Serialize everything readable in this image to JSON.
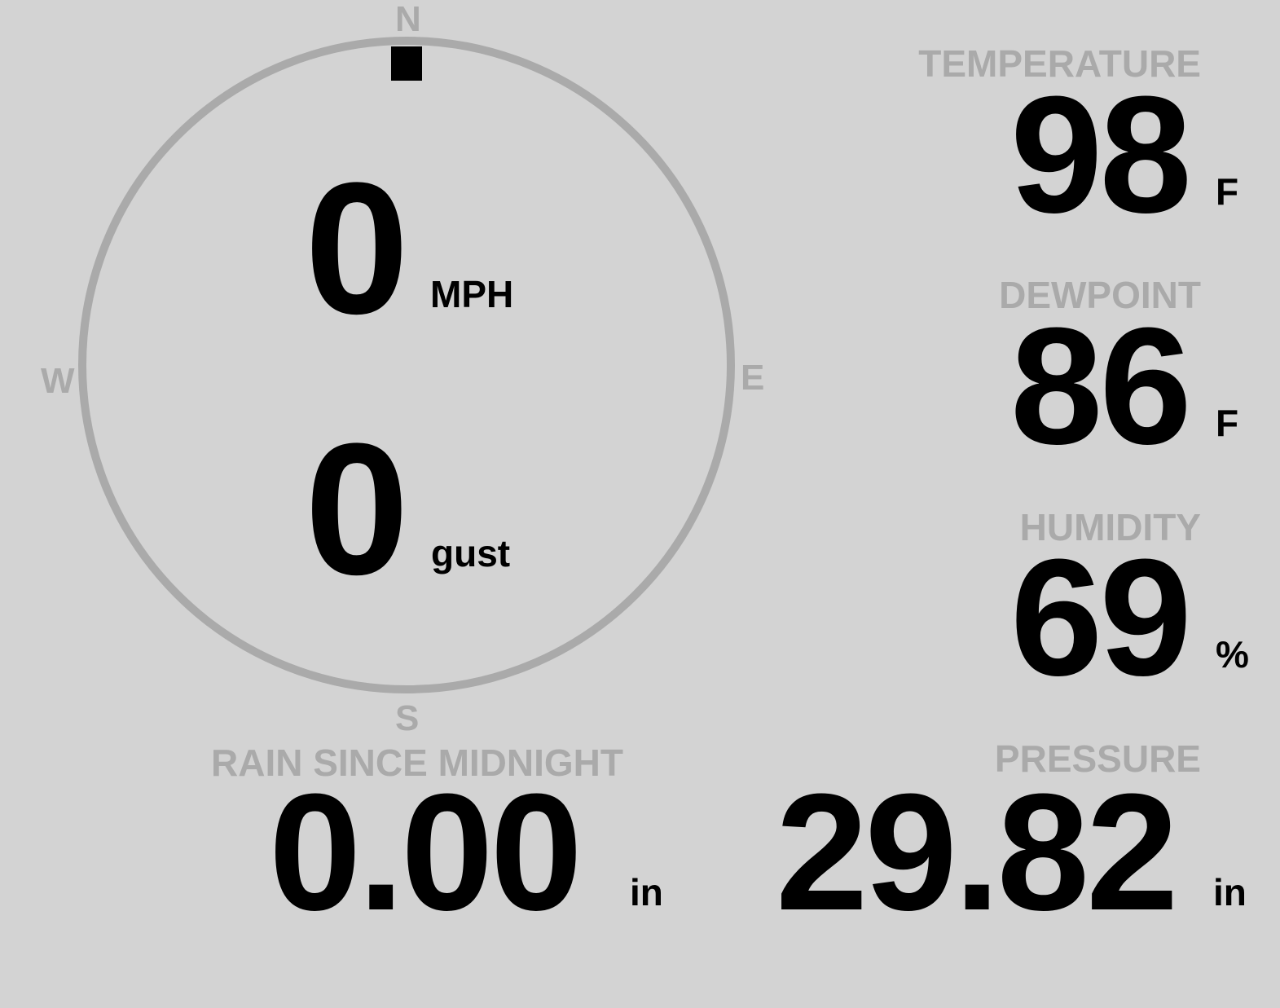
{
  "wind": {
    "speed": "0",
    "speed_unit": "MPH",
    "gust": "0",
    "gust_unit": "gust",
    "direction_deg": 0,
    "compass": {
      "n": "N",
      "e": "E",
      "s": "S",
      "w": "W"
    }
  },
  "temperature": {
    "label": "TEMPERATURE",
    "value": "98",
    "unit": "F"
  },
  "dewpoint": {
    "label": "DEWPOINT",
    "value": "86",
    "unit": "F"
  },
  "humidity": {
    "label": "HUMIDITY",
    "value": "69",
    "unit": "%"
  },
  "rain": {
    "label": "RAIN SINCE MIDNIGHT",
    "value": "0.00",
    "unit": "in"
  },
  "pressure": {
    "label": "PRESSURE",
    "value": "29.82",
    "unit": "in"
  },
  "colors": {
    "background": "#d3d3d3",
    "muted": "#aaaaaa",
    "value": "#000000"
  }
}
